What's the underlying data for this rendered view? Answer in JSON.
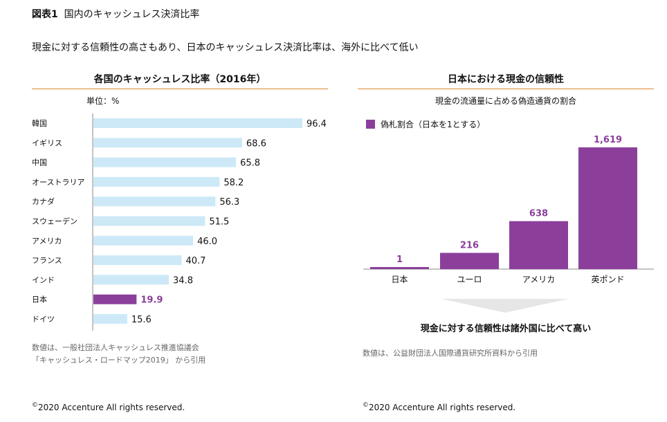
{
  "figure": {
    "label": "図表1",
    "title": "国内のキャッシュレス決済比率",
    "subtitle": "現金に対する信頼性の高さもあり、日本のキャッシュレス決済比率は、海外に比べて低い"
  },
  "left": {
    "note_lines": [
      "数値は、一般社団法人キャッシュレス推進協議会",
      "「キャッシュレス・ロードマップ2019」 から引用"
    ],
    "copyright": "2020 Accenture All rights reserved.",
    "copyright_symbol": "©"
  },
  "right": {
    "conclusion": "現金に対する信頼性は諸外国に比べて高い",
    "note": "数値は、公益財団法人国際通貨研究所資料から引用",
    "copyright": "2020 Accenture All rights reserved.",
    "copyright_symbol": "©"
  },
  "colors": {
    "bar": "#cde9f7",
    "highlight": "#8b3f9b",
    "rule": "#d98a2e",
    "arrow": "#e6e6e6"
  },
  "chart_data": [
    {
      "type": "bar",
      "orientation": "horizontal",
      "title": "各国のキャッシュレス比率（2016年）",
      "unit_label": "単位：%",
      "categories": [
        "韓国",
        "イギリス",
        "中国",
        "オーストラリア",
        "カナダ",
        "スウェーデン",
        "アメリカ",
        "フランス",
        "インド",
        "日本",
        "ドイツ"
      ],
      "values": [
        96.4,
        68.6,
        65.8,
        58.2,
        56.3,
        51.5,
        46.0,
        40.7,
        34.8,
        19.9,
        15.6
      ],
      "value_labels": [
        "96.4",
        "68.6",
        "65.8",
        "58.2",
        "56.3",
        "51.5",
        "46.0",
        "40.7",
        "34.8",
        "19.9",
        "15.6"
      ],
      "highlight": "日本",
      "xlim": [
        0,
        100
      ],
      "grid": false
    },
    {
      "type": "bar",
      "title": "日本における現金の信頼性",
      "subtitle": "現金の流通量に占める偽造通貨の割合",
      "legend": "偽札割合（日本を1とする）",
      "legend_position": "top-left",
      "categories": [
        "日本",
        "ユーロ",
        "アメリカ",
        "英ポンド"
      ],
      "series": [
        {
          "name": "偽札割合（日本を1とする）",
          "values": [
            1,
            216,
            638,
            1619
          ]
        }
      ],
      "value_labels": [
        "1",
        "216",
        "638",
        "1,619"
      ],
      "ylim": [
        0,
        1619
      ],
      "grid": false
    }
  ]
}
